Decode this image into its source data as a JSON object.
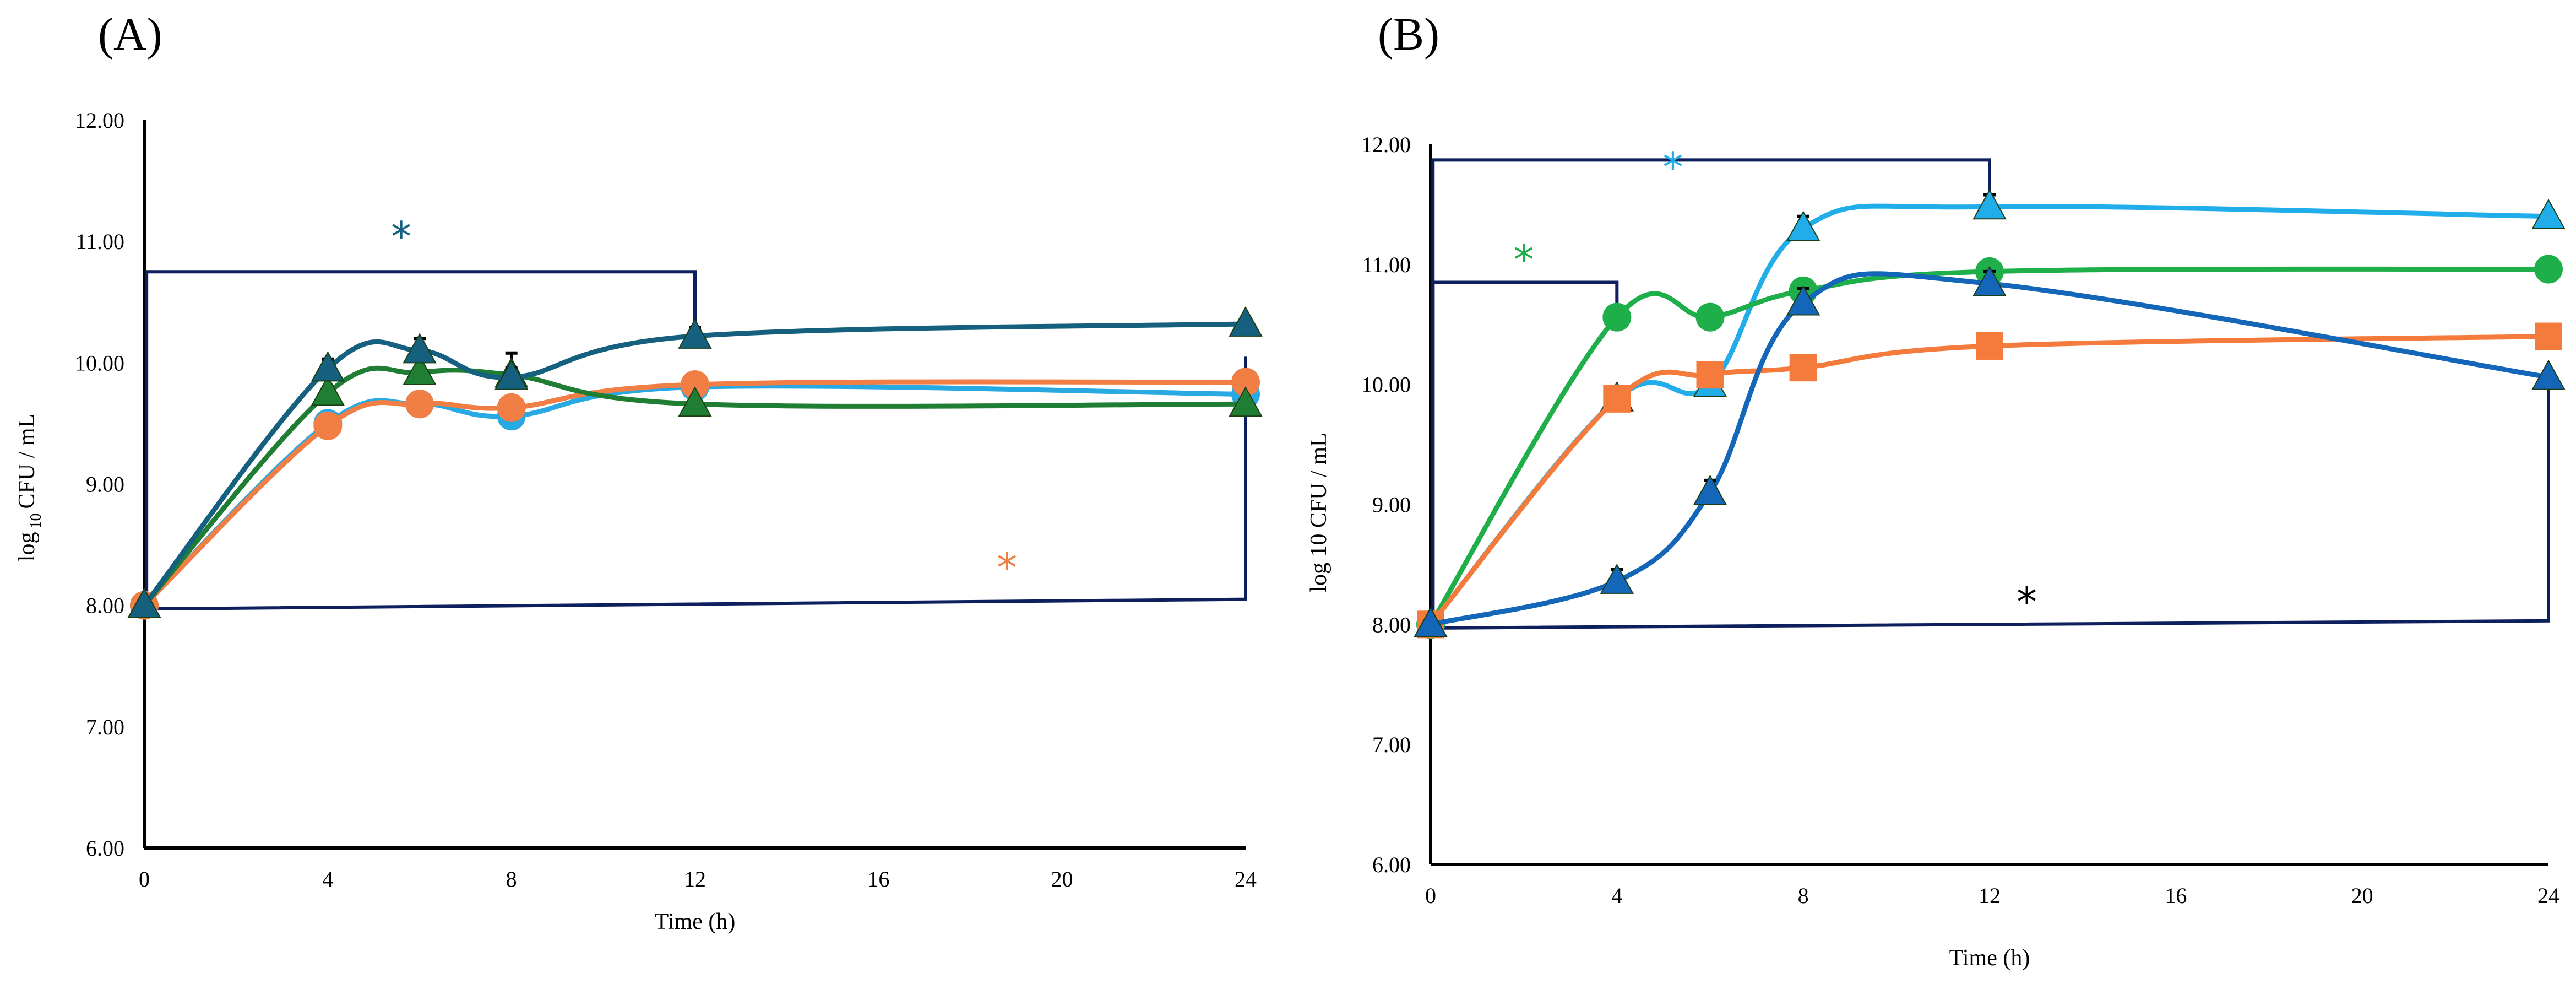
{
  "figure": {
    "panels": [
      "(A)",
      "(B)"
    ]
  },
  "chart_data": [
    {
      "type": "line",
      "panel_label": "(A)",
      "title": "",
      "xlabel": "Time (h)",
      "ylabel": {
        "pre": "log",
        "sub": "10",
        "post": "CFU / mL"
      },
      "xlim": [
        0,
        24
      ],
      "ylim": [
        6,
        12
      ],
      "x_ticks": [
        "0",
        "4",
        "8",
        "12",
        "16",
        "20",
        "24"
      ],
      "y_ticks": [
        "6.00",
        "7.00",
        "8.00",
        "9.00",
        "10.00",
        "11.00",
        "12.00"
      ],
      "series": [
        {
          "name": "series-light-blue-circle",
          "color": "#29A9E1",
          "marker": "circle",
          "x": [
            0,
            4,
            6,
            8,
            12,
            24
          ],
          "y": [
            8.0,
            9.5,
            9.66,
            9.56,
            9.8,
            9.74
          ],
          "err": [
            0,
            0,
            0,
            0,
            0,
            0
          ]
        },
        {
          "name": "series-orange-circle",
          "color": "#F07E45",
          "marker": "circle",
          "x": [
            0,
            4,
            6,
            8,
            12,
            24
          ],
          "y": [
            8.0,
            9.48,
            9.66,
            9.63,
            9.82,
            9.84
          ],
          "err": [
            0,
            0,
            0,
            0,
            0,
            0
          ]
        },
        {
          "name": "series-green-triangle",
          "color": "#1F7E33",
          "marker": "triangle",
          "x": [
            0,
            4,
            6,
            8,
            12,
            24
          ],
          "y": [
            8.0,
            9.75,
            9.92,
            9.9,
            9.66,
            9.66
          ],
          "err": [
            0,
            0.05,
            0.05,
            0.18,
            0,
            0
          ]
        },
        {
          "name": "series-teal-triangle",
          "color": "#16607F",
          "marker": "triangle",
          "x": [
            0,
            4,
            6,
            8,
            12,
            24
          ],
          "y": [
            8.0,
            9.95,
            10.1,
            9.88,
            10.22,
            10.32
          ],
          "err": [
            0,
            0.08,
            0.1,
            0.08,
            0.07,
            0
          ]
        }
      ],
      "annotations": [
        {
          "text": "*",
          "color": "#16607F",
          "x": 5.6,
          "y": 11.05
        },
        {
          "text": "*",
          "color": "#F07E45",
          "x": 18.8,
          "y": 8.32
        }
      ],
      "brackets": [
        {
          "from": [
            0.05,
            8.0
          ],
          "up": 10.75,
          "to_x": 12,
          "down": 10.27
        },
        {
          "from": [
            0.05,
            7.97
          ],
          "up": 7.97,
          "to_x": 24,
          "down": 10.05,
          "right_y": 8.05
        }
      ]
    },
    {
      "type": "line",
      "panel_label": "(B)",
      "title": "",
      "xlabel": "Time (h)",
      "ylabel": {
        "pre": "log 10 CFU / mL",
        "sub": "",
        "post": ""
      },
      "xlim": [
        0,
        24
      ],
      "ylim": [
        6,
        12
      ],
      "x_ticks": [
        "0",
        "4",
        "8",
        "12",
        "16",
        "20",
        "24"
      ],
      "y_ticks": [
        "6.00",
        "7.00",
        "8.00",
        "9.00",
        "10.00",
        "11.00",
        "12.00"
      ],
      "series": [
        {
          "name": "series-light-blue-triangle",
          "color": "#20ADEA",
          "marker": "triangle",
          "x": [
            0,
            4,
            6,
            8,
            12,
            24
          ],
          "y": [
            8.0,
            9.88,
            10.0,
            11.3,
            11.48,
            11.4
          ],
          "err": [
            0,
            0.1,
            0.12,
            0.1,
            0.1,
            0
          ]
        },
        {
          "name": "series-green-circle",
          "color": "#1FAF4A",
          "marker": "circle",
          "x": [
            0,
            4,
            6,
            8,
            12,
            24
          ],
          "y": [
            8.0,
            10.56,
            10.56,
            10.78,
            10.94,
            10.96
          ],
          "err": [
            0,
            0,
            0,
            0.08,
            0,
            0
          ]
        },
        {
          "name": "series-orange-square",
          "color": "#F47B3B",
          "marker": "square",
          "x": [
            0,
            4,
            6,
            8,
            12,
            24
          ],
          "y": [
            8.0,
            9.88,
            10.08,
            10.14,
            10.32,
            10.4
          ],
          "err": [
            0,
            0.1,
            0,
            0,
            0,
            0
          ]
        },
        {
          "name": "series-blue-triangle",
          "color": "#1466B8",
          "marker": "triangle",
          "x": [
            0,
            4,
            6,
            8,
            12,
            24
          ],
          "y": [
            8.0,
            8.36,
            9.1,
            10.68,
            10.84,
            10.06
          ],
          "err": [
            0,
            0.1,
            0.1,
            0.12,
            0.1,
            0
          ]
        }
      ],
      "annotations": [
        {
          "text": "*",
          "color": "#20ADEA",
          "x": 5.2,
          "y": 11.82
        },
        {
          "text": "*",
          "color": "#1FAF4A",
          "x": 2.0,
          "y": 11.05
        },
        {
          "text": "*",
          "color": "#000000",
          "x": 12.8,
          "y": 8.2
        }
      ],
      "brackets": [
        {
          "from": [
            0.05,
            8.0
          ],
          "up": 11.87,
          "to_x": 12,
          "down": 11.58
        },
        {
          "from": [
            0.05,
            8.0
          ],
          "up": 10.85,
          "to_x": 4,
          "down": 10.62
        },
        {
          "from": [
            0.05,
            7.97
          ],
          "up": 7.97,
          "to_x": 24,
          "down": 10.05,
          "right_y": 8.03
        }
      ]
    }
  ]
}
